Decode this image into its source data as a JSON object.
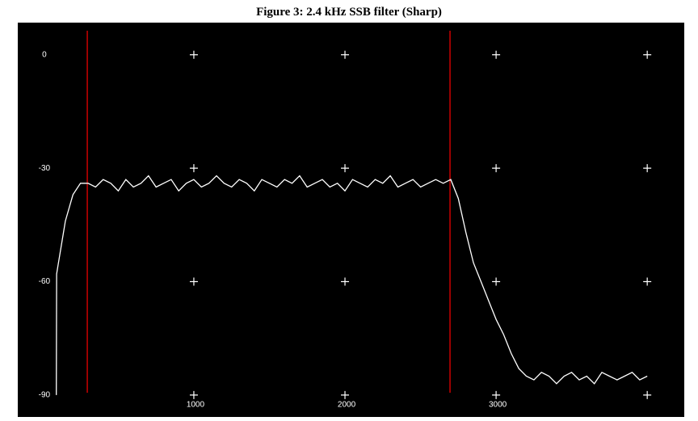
{
  "chart_data": {
    "type": "line",
    "title": "Figure  3: 2.4 kHz SSB filter (Sharp)",
    "x": [
      90,
      92,
      100,
      150,
      200,
      250,
      300,
      350,
      400,
      450,
      500,
      550,
      600,
      650,
      700,
      750,
      800,
      850,
      900,
      950,
      1000,
      1050,
      1100,
      1150,
      1200,
      1250,
      1300,
      1350,
      1400,
      1450,
      1500,
      1550,
      1600,
      1650,
      1700,
      1750,
      1800,
      1850,
      1900,
      1950,
      2000,
      2050,
      2100,
      2150,
      2200,
      2250,
      2300,
      2350,
      2400,
      2450,
      2500,
      2550,
      2600,
      2650,
      2700,
      2750,
      2800,
      2850,
      2900,
      2950,
      3000,
      3050,
      3100,
      3150,
      3200,
      3250,
      3300,
      3350,
      3400,
      3450,
      3500,
      3550,
      3600,
      3650,
      3700,
      3750,
      3800,
      3850,
      3900,
      3950,
      4000
    ],
    "values": [
      -90,
      -58,
      -56,
      -44,
      -37,
      -34,
      -34,
      -35,
      -33,
      -34,
      -36,
      -33,
      -35,
      -34,
      -32,
      -35,
      -34,
      -33,
      -36,
      -34,
      -33,
      -35,
      -34,
      -32,
      -34,
      -35,
      -33,
      -34,
      -36,
      -33,
      -34,
      -35,
      -33,
      -34,
      -32,
      -35,
      -34,
      -33,
      -35,
      -34,
      -36,
      -33,
      -34,
      -35,
      -33,
      -34,
      -32,
      -35,
      -34,
      -33,
      -35,
      -34,
      -33,
      -34,
      -33,
      -38,
      -47,
      -55,
      -60,
      -65,
      -70,
      -74,
      -79,
      -83,
      -85,
      -86,
      -84,
      -85,
      -87,
      -85,
      -84,
      -86,
      -85,
      -87,
      -84,
      -85,
      -86,
      -85,
      -84,
      -86,
      -85
    ],
    "color": "#ffffff",
    "xlim": [
      -165,
      4245
    ],
    "ylim": [
      -95.8,
      8.5
    ],
    "xticks": [
      1000,
      2000,
      3000
    ],
    "yticks": [
      0,
      -30,
      -60,
      -90
    ],
    "crosses_x": [
      1000,
      2000,
      3000,
      4000
    ],
    "markers": [
      295,
      2695
    ],
    "marker_color": "#cc0000",
    "background": "#000000"
  }
}
